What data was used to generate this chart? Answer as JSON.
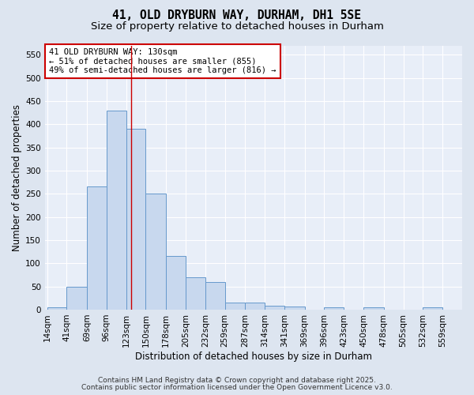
{
  "title": "41, OLD DRYBURN WAY, DURHAM, DH1 5SE",
  "subtitle": "Size of property relative to detached houses in Durham",
  "xlabel": "Distribution of detached houses by size in Durham",
  "ylabel": "Number of detached properties",
  "bar_edges": [
    14,
    41,
    69,
    96,
    123,
    150,
    178,
    205,
    232,
    259,
    287,
    314,
    341,
    369,
    396,
    423,
    450,
    478,
    505,
    532,
    559
  ],
  "bar_heights": [
    5,
    50,
    265,
    430,
    390,
    250,
    115,
    70,
    60,
    15,
    15,
    8,
    6,
    0,
    5,
    0,
    5,
    0,
    0,
    5
  ],
  "bar_color": "#c8d8ee",
  "bar_edge_color": "#6699cc",
  "property_size": 130,
  "red_line_color": "#cc0000",
  "annotation_line1": "41 OLD DRYBURN WAY: 130sqm",
  "annotation_line2": "← 51% of detached houses are smaller (855)",
  "annotation_line3": "49% of semi-detached houses are larger (816) →",
  "annotation_box_color": "#ffffff",
  "annotation_box_edge_color": "#cc0000",
  "ylim": [
    0,
    570
  ],
  "yticks": [
    0,
    50,
    100,
    150,
    200,
    250,
    300,
    350,
    400,
    450,
    500,
    550
  ],
  "background_color": "#dde5f0",
  "plot_background_color": "#e8eef8",
  "grid_color": "#ffffff",
  "footer_text1": "Contains HM Land Registry data © Crown copyright and database right 2025.",
  "footer_text2": "Contains public sector information licensed under the Open Government Licence v3.0.",
  "title_fontsize": 10.5,
  "subtitle_fontsize": 9.5,
  "axis_label_fontsize": 8.5,
  "tick_fontsize": 7.5,
  "annotation_fontsize": 7.5,
  "footer_fontsize": 6.5
}
